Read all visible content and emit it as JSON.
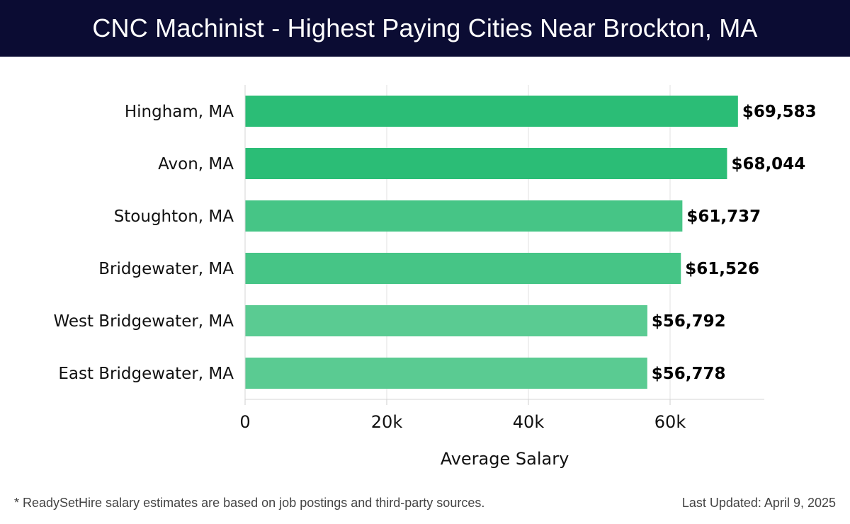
{
  "header": {
    "title": "CNC Machinist - Highest Paying Cities Near Brockton, MA"
  },
  "chart_data": {
    "type": "bar",
    "orientation": "horizontal",
    "categories": [
      "Hingham, MA",
      "Avon, MA",
      "Stoughton, MA",
      "Bridgewater, MA",
      "West Bridgewater, MA",
      "East Bridgewater, MA"
    ],
    "values": [
      69583,
      68044,
      61737,
      61526,
      56792,
      56778
    ],
    "value_labels": [
      "$69,583",
      "$68,044",
      "$61,737",
      "$61,526",
      "$56,792",
      "$56,778"
    ],
    "bar_colors": [
      "#2bbd76",
      "#2bbd76",
      "#46c586",
      "#46c586",
      "#5acb92",
      "#5acb92"
    ],
    "xlabel": "Average Salary",
    "ylabel": "",
    "xlim": [
      0,
      73300
    ],
    "xticks": [
      0,
      20000,
      40000,
      60000
    ],
    "xtick_labels": [
      "0",
      "20k",
      "40k",
      "60k"
    ],
    "grid": "vertical",
    "legend": "none"
  },
  "footer": {
    "note": "* ReadySetHire salary estimates are based on job postings and third-party sources.",
    "updated": "Last Updated: April 9, 2025"
  }
}
